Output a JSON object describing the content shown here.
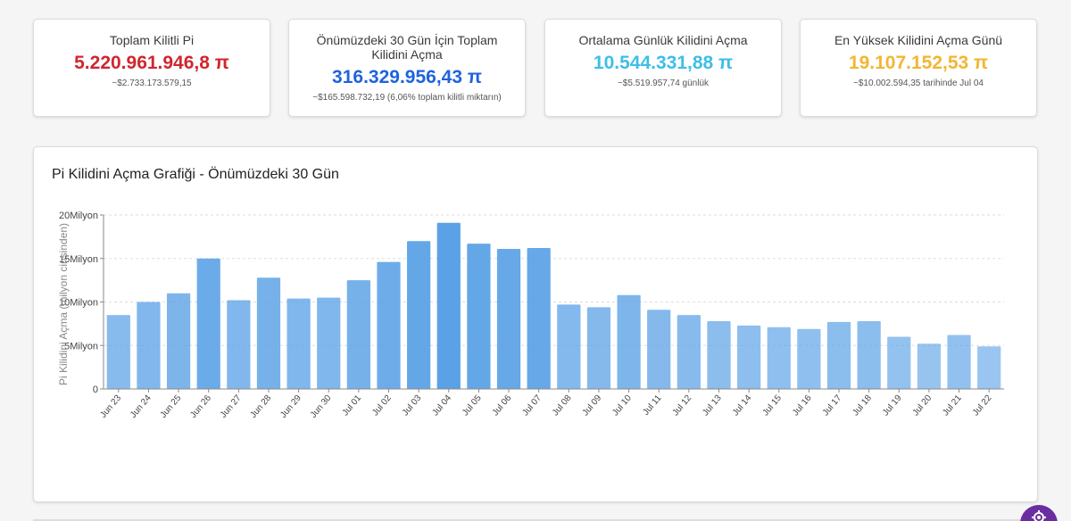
{
  "cards": [
    {
      "title": "Toplam Kilitli Pi",
      "value": "5.220.961.946,8 π",
      "sub": "~$2.733.173.579,15",
      "color": "#d0262f"
    },
    {
      "title": "Önümüzdeki 30 Gün İçin Toplam Kilidini Açma",
      "value": "316.329.956,43 π",
      "sub": "~$165.598.732,19 (6,06% toplam kilitli miktarın)",
      "color": "#1f63dd"
    },
    {
      "title": "Ortalama Günlük Kilidini Açma",
      "value": "10.544.331,88 π",
      "sub": "~$5.519.957,74 günlük",
      "color": "#3dbee8"
    },
    {
      "title": "En Yüksek Kilidini Açma Günü",
      "value": "19.107.152,53 π",
      "sub": "~$10.002.594,35 tarihinde Jul 04",
      "color": "#f2b632"
    }
  ],
  "chart_title": "Pi Kilidini Açma Grafiği - Önümüzdeki 30 Gün",
  "chart_data": {
    "type": "bar",
    "title": "Pi Kilidini Açma Grafiği - Önümüzdeki 30 Gün",
    "xlabel": "",
    "ylabel": "Pi Kilidini Açma (milyon cinsinden)",
    "ylim": [
      0,
      20
    ],
    "yticks": [
      0,
      5,
      10,
      15,
      20
    ],
    "ytick_labels": [
      "0",
      "5Milyon",
      "10Milyon",
      "15Milyon",
      "20Milyon"
    ],
    "grid": true,
    "categories": [
      "Jun 23",
      "Jun 24",
      "Jun 25",
      "Jun 26",
      "Jun 27",
      "Jun 28",
      "Jun 29",
      "Jun 30",
      "Jul 01",
      "Jul 02",
      "Jul 03",
      "Jul 04",
      "Jul 05",
      "Jul 06",
      "Jul 07",
      "Jul 08",
      "Jul 09",
      "Jul 10",
      "Jul 11",
      "Jul 12",
      "Jul 13",
      "Jul 14",
      "Jul 15",
      "Jul 16",
      "Jul 17",
      "Jul 18",
      "Jul 19",
      "Jul 20",
      "Jul 21",
      "Jul 22"
    ],
    "values": [
      8.5,
      10.0,
      11.0,
      15.0,
      10.2,
      12.8,
      10.4,
      10.5,
      12.5,
      14.6,
      17.0,
      19.1,
      16.7,
      16.1,
      16.2,
      9.7,
      9.4,
      10.8,
      9.1,
      8.5,
      7.8,
      7.3,
      7.1,
      6.9,
      7.7,
      7.8,
      6.0,
      5.2,
      6.2,
      4.9
    ],
    "color": "#5aa1e6"
  }
}
